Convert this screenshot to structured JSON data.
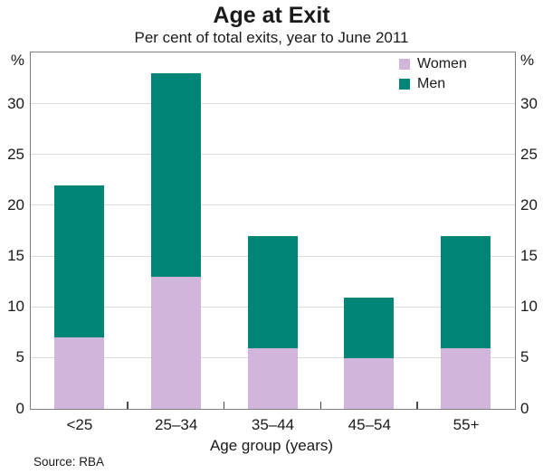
{
  "chart_data": {
    "type": "bar",
    "stacked": true,
    "title": "Age at Exit",
    "subtitle": "Per cent of total exits, year to June 2011",
    "categories": [
      "<25",
      "25–34",
      "35–44",
      "45–54",
      "55+"
    ],
    "series": [
      {
        "name": "Women",
        "color": "#d2b5da",
        "values": [
          7,
          13,
          6,
          5,
          6
        ]
      },
      {
        "name": "Men",
        "color": "#008576",
        "values": [
          15,
          20,
          11,
          6,
          11
        ]
      }
    ],
    "xlabel": "Age group (years)",
    "y_unit_label": "%",
    "ylim": [
      0,
      35
    ],
    "yticks": [
      0,
      5,
      10,
      15,
      20,
      25,
      30
    ],
    "grid": true,
    "legend_position": "top-right-inside",
    "frame_color": "#7f7f7f",
    "gridline_color": "#dcdcdc",
    "source": "Source: RBA"
  }
}
